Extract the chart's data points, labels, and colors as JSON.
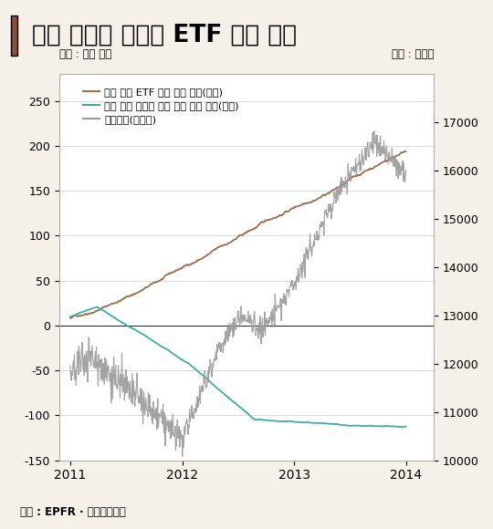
{
  "title": "미국 뮤추얼 펀드와 ETF 자금 흐름",
  "title_fontsize": 19,
  "left_ylabel": "단위 : 십억 달러",
  "right_ylabel": "단위 : 포인트",
  "source": "자료 : EPFR · 하나대두증권",
  "ylim_left": [
    -150,
    280
  ],
  "ylim_right": [
    10000,
    18000
  ],
  "yticks_left": [
    -150,
    -100,
    -50,
    0,
    50,
    100,
    150,
    200,
    250
  ],
  "yticks_right": [
    10000,
    11000,
    12000,
    13000,
    14000,
    15000,
    16000,
    17000
  ],
  "xtick_years": [
    2011,
    2012,
    2013,
    2014
  ],
  "bg_color": "#f5f0e8",
  "plot_bg_color": "#ffffff",
  "etf_color": "#a0714f",
  "mutual_color": "#3aada8",
  "dow_color": "#999999",
  "legend_labels": [
    "북미 주식 ETF 자금 흐름 누적(왼쪽)",
    "북미 주식 뮤추얼 펀드 자금 흐름 누적(왼쪽)",
    "다우지수(오른쪽)"
  ],
  "title_bar_color": "#8b4c3c"
}
